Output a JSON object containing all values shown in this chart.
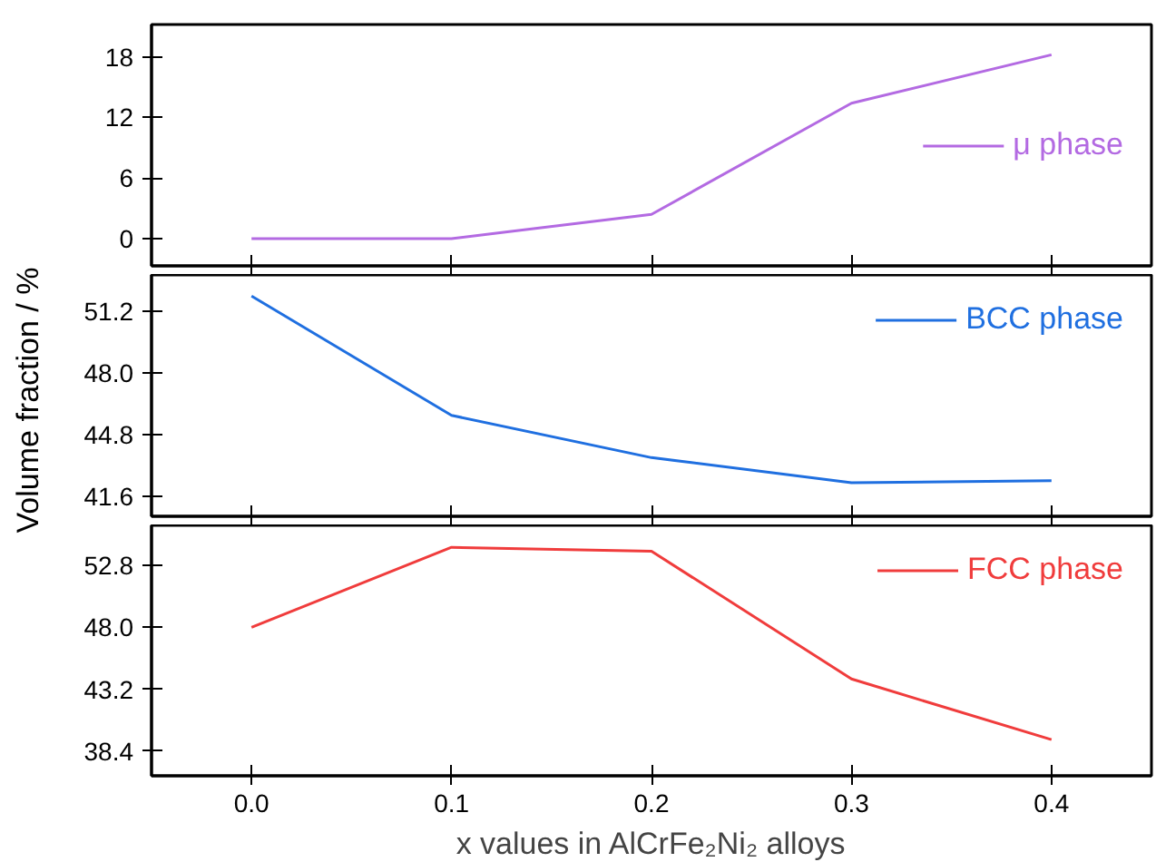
{
  "chart_data": [
    {
      "type": "line",
      "x": [
        0,
        0.1,
        0.2,
        0.3,
        0.4
      ],
      "xlim": [
        -0.05,
        0.45
      ],
      "xticks": [
        {
          "value": 0,
          "label": null
        },
        {
          "value": 0.1,
          "label": null
        },
        {
          "value": 0.2,
          "label": null
        },
        {
          "value": 0.3,
          "label": null
        },
        {
          "value": 0.4,
          "label": null
        }
      ],
      "ylim": [
        -2.7,
        21.2
      ],
      "yticks": [
        0,
        6,
        12,
        18
      ],
      "tick_labels": "y",
      "legend": "right",
      "series": [
        {
          "name": "μ phase",
          "color": "#b36ae2",
          "values": [
            0,
            0,
            2.4,
            13.4,
            18.2
          ]
        }
      ]
    },
    {
      "type": "line",
      "x": [
        0,
        0.1,
        0.2,
        0.3,
        0.4
      ],
      "xlim": [
        -0.05,
        0.45
      ],
      "xticks": [
        {
          "value": 0,
          "label": null
        },
        {
          "value": 0.1,
          "label": null
        },
        {
          "value": 0.2,
          "label": null
        },
        {
          "value": 0.3,
          "label": null
        },
        {
          "value": 0.4,
          "label": null
        }
      ],
      "ylim": [
        40.55,
        53.1
      ],
      "yticks": [
        41.6,
        44.8,
        {
          "value": 48,
          "label": "48.0"
        },
        51.2
      ],
      "tick_labels": "y",
      "legend": "top right",
      "ylabel": "Volume fraction / %",
      "series": [
        {
          "name": "BCC phase",
          "color": "#1f6fe0",
          "values": [
            52.0,
            45.8,
            43.6,
            42.3,
            42.4
          ]
        }
      ]
    },
    {
      "type": "line",
      "x": [
        0,
        0.1,
        0.2,
        0.3,
        0.4
      ],
      "xlim": [
        -0.05,
        0.45
      ],
      "xticks": [
        {
          "value": 0,
          "label": "0.0"
        },
        {
          "value": 0.1,
          "label": "0.1"
        },
        {
          "value": 0.2,
          "label": "0.2"
        },
        {
          "value": 0.3,
          "label": "0.3"
        },
        {
          "value": 0.4,
          "label": "0.4"
        }
      ],
      "ylim": [
        36.5,
        55.9
      ],
      "yticks": [
        38.4,
        43.2,
        {
          "value": 48,
          "label": "48.0"
        },
        52.8
      ],
      "legend": "top right",
      "xlabel": "x values in AlCrFe₂Ni₂ alloys",
      "series": [
        {
          "name": "FCC phase",
          "color": "#f03c3c",
          "values": [
            48.0,
            54.2,
            53.9,
            44.0,
            39.3
          ]
        }
      ]
    }
  ]
}
